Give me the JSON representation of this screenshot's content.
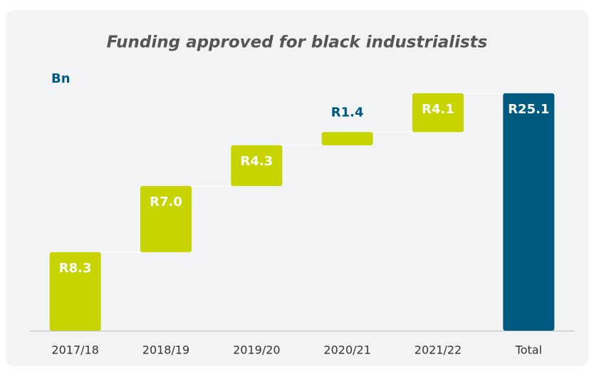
{
  "chart_data": {
    "type": "waterfall",
    "title": "Funding approved for black industrialists",
    "unit_label": "Bn",
    "categories": [
      "2017/18",
      "2018/19",
      "2019/20",
      "2020/21",
      "2021/22",
      "Total"
    ],
    "values": [
      8.3,
      7.0,
      4.3,
      1.4,
      4.1,
      25.1
    ],
    "value_labels": [
      "R8.3",
      "R7.0",
      "R4.3",
      "R1.4",
      "R4.1",
      "R25.1"
    ],
    "colors": [
      "#c8d400",
      "#c8d400",
      "#c8d400",
      "#c8d400",
      "#c8d400",
      "#005a80"
    ]
  }
}
